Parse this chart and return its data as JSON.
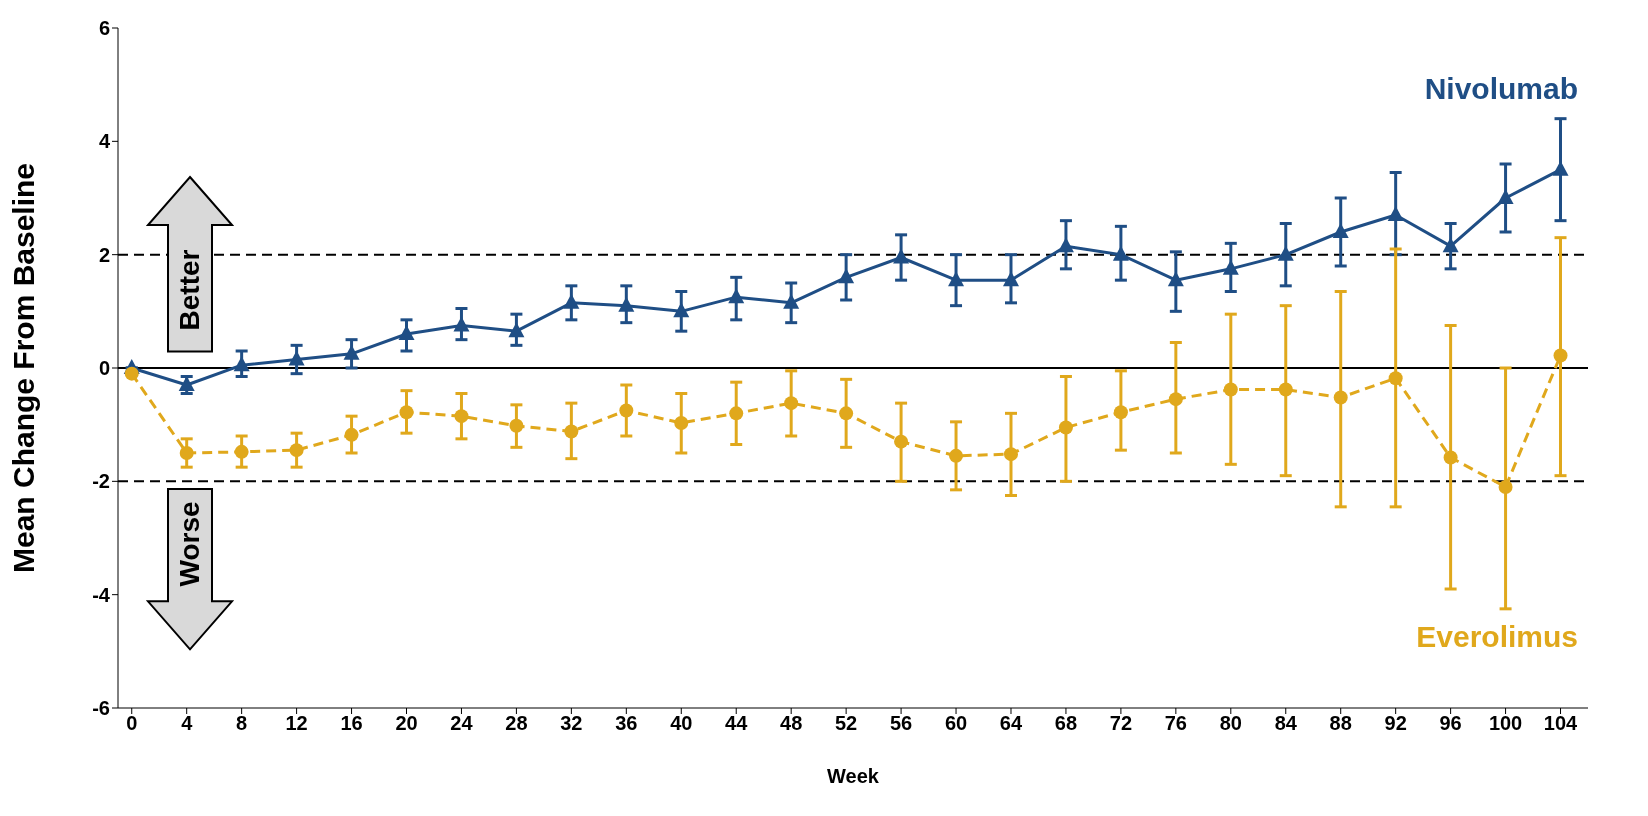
{
  "chart_data": {
    "type": "line",
    "ylabel": "Mean Change From Baseline",
    "xlabel": "Week",
    "xlim": [
      -1,
      106
    ],
    "xticks": [
      0,
      4,
      8,
      12,
      16,
      20,
      24,
      28,
      32,
      36,
      40,
      44,
      48,
      52,
      56,
      60,
      64,
      68,
      72,
      76,
      80,
      84,
      88,
      92,
      96,
      100,
      104
    ],
    "ylim": [
      -6,
      6
    ],
    "yticks": [
      -6,
      -4,
      -2,
      0,
      2,
      4,
      6
    ],
    "grid": false,
    "legend": false,
    "x": [
      0,
      4,
      8,
      12,
      16,
      20,
      24,
      28,
      32,
      36,
      40,
      44,
      48,
      52,
      56,
      60,
      64,
      68,
      72,
      76,
      80,
      84,
      88,
      92,
      96,
      100,
      104
    ],
    "series": [
      {
        "name": "Nivolumab",
        "color": "#1f4e85",
        "marker": "triangle",
        "line_style": "solid",
        "values": [
          0,
          -0.3,
          0.05,
          0.15,
          0.25,
          0.6,
          0.75,
          0.65,
          1.15,
          1.1,
          1.0,
          1.25,
          1.15,
          1.6,
          1.95,
          1.55,
          1.55,
          2.15,
          2.0,
          1.55,
          1.75,
          2.0,
          2.4,
          2.7,
          2.15,
          3.0,
          3.5
        ],
        "errors": [
          null,
          [
            -0.45,
            -0.15
          ],
          [
            -0.15,
            0.3
          ],
          [
            -0.1,
            0.4
          ],
          [
            0,
            0.5
          ],
          [
            0.3,
            0.85
          ],
          [
            0.5,
            1.05
          ],
          [
            0.4,
            0.95
          ],
          [
            0.85,
            1.45
          ],
          [
            0.8,
            1.45
          ],
          [
            0.65,
            1.35
          ],
          [
            0.85,
            1.6
          ],
          [
            0.8,
            1.5
          ],
          [
            1.2,
            2.0
          ],
          [
            1.55,
            2.35
          ],
          [
            1.1,
            2.0
          ],
          [
            1.15,
            2.0
          ],
          [
            1.75,
            2.6
          ],
          [
            1.55,
            2.5
          ],
          [
            1.0,
            2.05
          ],
          [
            1.35,
            2.2
          ],
          [
            1.45,
            2.55
          ],
          [
            1.8,
            3.0
          ],
          [
            2.0,
            3.45
          ],
          [
            1.75,
            2.55
          ],
          [
            2.4,
            3.6
          ],
          [
            2.6,
            4.4
          ]
        ]
      },
      {
        "name": "Everolimus",
        "color": "#e0a81c",
        "marker": "circle",
        "line_style": "dashed",
        "values": [
          -0.1,
          -1.5,
          -1.48,
          -1.45,
          -1.18,
          -0.78,
          -0.85,
          -1.02,
          -1.12,
          -0.75,
          -0.97,
          -0.8,
          -0.62,
          -0.8,
          -1.3,
          -1.55,
          -1.52,
          -1.05,
          -0.78,
          -0.55,
          -0.38,
          -0.38,
          -0.52,
          -0.18,
          -1.58,
          -2.1,
          0.22
        ],
        "errors": [
          null,
          [
            -1.75,
            -1.25
          ],
          [
            -1.75,
            -1.2
          ],
          [
            -1.75,
            -1.15
          ],
          [
            -1.5,
            -0.85
          ],
          [
            -1.15,
            -0.4
          ],
          [
            -1.25,
            -0.45
          ],
          [
            -1.4,
            -0.65
          ],
          [
            -1.6,
            -0.62
          ],
          [
            -1.2,
            -0.3
          ],
          [
            -1.5,
            -0.45
          ],
          [
            -1.35,
            -0.25
          ],
          [
            -1.2,
            -0.05
          ],
          [
            -1.4,
            -0.2
          ],
          [
            -2.0,
            -0.62
          ],
          [
            -2.15,
            -0.95
          ],
          [
            -2.25,
            -0.8
          ],
          [
            -2.0,
            -0.15
          ],
          [
            -1.45,
            -0.05
          ],
          [
            -1.5,
            0.45
          ],
          [
            -1.7,
            0.95
          ],
          [
            -1.9,
            1.1
          ],
          [
            -2.45,
            1.35
          ],
          [
            -2.45,
            2.1
          ],
          [
            -3.9,
            0.75
          ],
          [
            -4.25,
            0.0
          ],
          [
            -1.9,
            2.3
          ]
        ]
      }
    ],
    "ref_lines": [
      {
        "axis": "y",
        "value": 2,
        "line_style": "dashed",
        "color": "#000000"
      },
      {
        "axis": "y",
        "value": -2,
        "line_style": "dashed",
        "color": "#000000"
      },
      {
        "axis": "y",
        "value": 0,
        "line_style": "solid",
        "color": "#000000"
      }
    ],
    "annotations": [
      "Better",
      "Worse"
    ]
  }
}
